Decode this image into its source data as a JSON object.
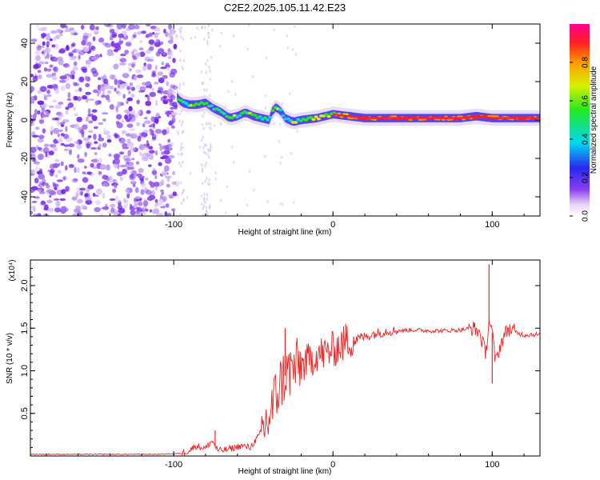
{
  "title": "C2E2.2025.105.11.42.E23",
  "colors": {
    "line": "#ee2222",
    "spectral_low": "#7b2fe8",
    "spectral_high": "#ee1111"
  },
  "chart_data": [
    {
      "type": "heatmap",
      "xlabel": "Height of straight line (km)",
      "ylabel": "Frequency (Hz)",
      "xlim": [
        -190,
        130
      ],
      "ylim": [
        -50,
        50
      ],
      "x_ticks": [
        "-100",
        "0",
        "100"
      ],
      "y_ticks": [
        "-40",
        "-20",
        "0",
        "20",
        "40"
      ],
      "colorbar": {
        "label": "Normalized spectral amplitude",
        "range": [
          0,
          1
        ],
        "ticks": [
          "0.0",
          "0.2",
          "0.4",
          "0.6",
          "0.8"
        ],
        "colormap": "rainbow (purple to red)"
      },
      "features": {
        "noise_region_x": [
          -190,
          -98
        ],
        "ridge": [
          {
            "x": -98,
            "y": 12
          },
          {
            "x": -95,
            "y": 9
          },
          {
            "x": -90,
            "y": 8
          },
          {
            "x": -85,
            "y": 8
          },
          {
            "x": -80,
            "y": 9
          },
          {
            "x": -75,
            "y": 6
          },
          {
            "x": -70,
            "y": 4
          },
          {
            "x": -65,
            "y": 1
          },
          {
            "x": -60,
            "y": 2
          },
          {
            "x": -55,
            "y": 4
          },
          {
            "x": -50,
            "y": 2
          },
          {
            "x": -45,
            "y": 1
          },
          {
            "x": -40,
            "y": 0
          },
          {
            "x": -37,
            "y": 7
          },
          {
            "x": -33,
            "y": 5
          },
          {
            "x": -30,
            "y": 1
          },
          {
            "x": -25,
            "y": -1
          },
          {
            "x": -20,
            "y": 0
          },
          {
            "x": -10,
            "y": 1
          },
          {
            "x": 0,
            "y": 3
          },
          {
            "x": 10,
            "y": 2
          },
          {
            "x": 20,
            "y": 1
          },
          {
            "x": 40,
            "y": 1
          },
          {
            "x": 60,
            "y": 1
          },
          {
            "x": 80,
            "y": 1
          },
          {
            "x": 90,
            "y": 2
          },
          {
            "x": 100,
            "y": 1
          },
          {
            "x": 130,
            "y": 1
          }
        ]
      }
    },
    {
      "type": "line",
      "xlabel": "Height of straight line (km)",
      "ylabel": "SNR (10 * v/v)",
      "y_multiplier": "(x10⁴)",
      "xlim": [
        -190,
        130
      ],
      "ylim": [
        0,
        2.3
      ],
      "x_ticks": [
        "-100",
        "0",
        "100"
      ],
      "y_ticks": [
        "0.5",
        "1.0",
        "1.5",
        "2.0"
      ],
      "series": [
        {
          "x": [
            -190,
            -150,
            -110,
            -95,
            -90,
            -86,
            -80,
            -76,
            -72,
            -65,
            -58,
            -52,
            -46,
            -40,
            -36,
            -32,
            -27,
            -22,
            -16,
            -10,
            -5,
            0,
            5,
            10,
            15,
            20,
            25,
            30,
            35,
            40,
            50,
            60,
            70,
            80,
            88,
            92,
            96,
            98,
            100,
            102,
            106,
            110,
            115,
            120,
            125,
            130
          ],
          "values": [
            0.02,
            0.02,
            0.02,
            0.03,
            0.07,
            0.12,
            0.09,
            0.18,
            0.06,
            0.08,
            0.12,
            0.1,
            0.25,
            0.45,
            0.7,
            0.9,
            1.0,
            1.05,
            1.1,
            1.2,
            1.2,
            1.25,
            1.3,
            1.35,
            1.38,
            1.4,
            1.43,
            1.45,
            1.47,
            1.47,
            1.48,
            1.47,
            1.47,
            1.48,
            1.5,
            1.45,
            1.2,
            1.6,
            1.45,
            1.1,
            1.35,
            1.5,
            1.45,
            1.42,
            1.43,
            1.42
          ]
        }
      ],
      "spikes": [
        {
          "x": -74,
          "value": 0.3
        },
        {
          "x": -30,
          "value": 1.5
        },
        {
          "x": 8,
          "value": 1.55
        },
        {
          "x": 13,
          "value": 1.4
        },
        {
          "x": 98,
          "value": 2.25
        },
        {
          "x": 100,
          "value": 0.85
        }
      ]
    }
  ]
}
